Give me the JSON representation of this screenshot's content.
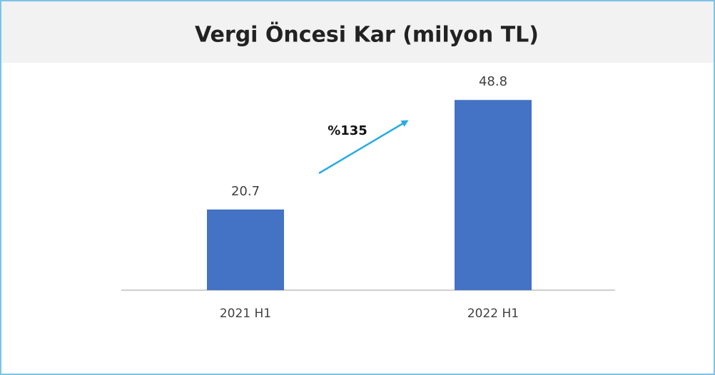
{
  "chart_data": {
    "type": "bar",
    "title": "Vergi Öncesi Kar (milyon TL)",
    "categories": [
      "2021 H1",
      "2022 H1"
    ],
    "values": [
      20.7,
      48.8
    ],
    "color": "#4472c4",
    "ylim": [
      0,
      60
    ],
    "annotation": "%135"
  }
}
